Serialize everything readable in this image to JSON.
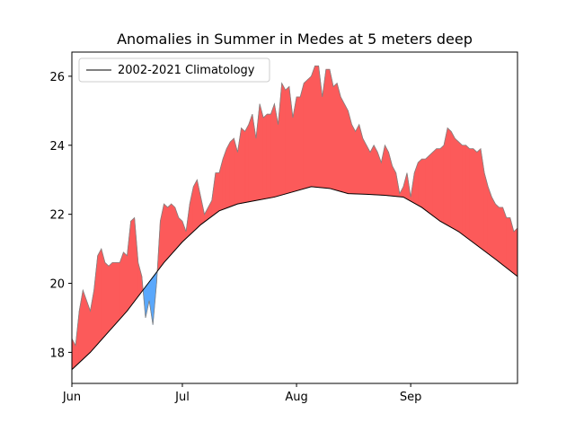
{
  "chart_data": {
    "type": "area",
    "title": "Anomalies in Summer in Medes at 5 meters deep",
    "xlabel": "",
    "ylabel": "",
    "x_ticks": [
      {
        "label": "Jun",
        "day": 0
      },
      {
        "label": "Jul",
        "day": 30
      },
      {
        "label": "Aug",
        "day": 61
      },
      {
        "label": "Sep",
        "day": 92
      }
    ],
    "y_ticks": [
      18,
      20,
      22,
      24,
      26
    ],
    "xlim": [
      0,
      121
    ],
    "ylim": [
      17.1,
      26.7
    ],
    "legend": {
      "position": "top-left",
      "entries": [
        "2002-2021 Climatology"
      ]
    },
    "grid": false,
    "colors": {
      "above": "#fc5a5a",
      "below": "#5aa8fc",
      "observed_line": "#808080",
      "climatology_line": "#000000"
    },
    "series": [
      {
        "name": "2002-2021 Climatology",
        "role": "climatology",
        "x": [
          0,
          5,
          10,
          15,
          20,
          25,
          30,
          35,
          40,
          45,
          50,
          55,
          60,
          65,
          70,
          75,
          80,
          85,
          90,
          95,
          100,
          105,
          110,
          115,
          121
        ],
        "values": [
          17.5,
          18.0,
          18.6,
          19.2,
          19.9,
          20.6,
          21.2,
          21.7,
          22.1,
          22.3,
          22.4,
          22.5,
          22.65,
          22.8,
          22.75,
          22.6,
          22.58,
          22.55,
          22.5,
          22.2,
          21.8,
          21.5,
          21.1,
          20.7,
          20.2
        ]
      },
      {
        "name": "",
        "role": "observed",
        "x": [
          0,
          1,
          2,
          3,
          4,
          5,
          6,
          7,
          8,
          9,
          10,
          11,
          12,
          13,
          14,
          15,
          16,
          17,
          18,
          19,
          20,
          21,
          22,
          23,
          24,
          25,
          26,
          27,
          28,
          29,
          30,
          31,
          32,
          33,
          34,
          35,
          36,
          37,
          38,
          39,
          40,
          41,
          42,
          43,
          44,
          45,
          46,
          47,
          48,
          49,
          50,
          51,
          52,
          53,
          54,
          55,
          56,
          57,
          58,
          59,
          60,
          61,
          62,
          63,
          64,
          65,
          66,
          67,
          68,
          69,
          70,
          71,
          72,
          73,
          74,
          75,
          76,
          77,
          78,
          79,
          80,
          81,
          82,
          83,
          84,
          85,
          86,
          87,
          88,
          89,
          90,
          91,
          92,
          93,
          94,
          95,
          96,
          97,
          98,
          99,
          100,
          101,
          102,
          103,
          104,
          105,
          106,
          107,
          108,
          109,
          110,
          111,
          112,
          113,
          114,
          115,
          116,
          117,
          118,
          119,
          120,
          121
        ],
        "values": [
          18.4,
          18.2,
          19.2,
          19.8,
          19.5,
          19.2,
          19.8,
          20.8,
          21.0,
          20.6,
          20.5,
          20.6,
          20.6,
          20.6,
          20.9,
          20.8,
          21.8,
          21.9,
          20.6,
          20.2,
          19.0,
          19.5,
          18.8,
          20.0,
          21.8,
          22.3,
          22.2,
          22.3,
          22.2,
          21.9,
          21.8,
          21.5,
          22.3,
          22.8,
          23.0,
          22.5,
          22.0,
          22.2,
          22.4,
          23.2,
          23.2,
          23.6,
          23.9,
          24.1,
          24.2,
          23.8,
          24.5,
          24.4,
          24.6,
          24.9,
          24.2,
          25.2,
          24.8,
          24.9,
          24.9,
          25.2,
          24.6,
          25.8,
          25.6,
          25.7,
          24.8,
          25.4,
          25.4,
          25.8,
          25.9,
          26.0,
          26.3,
          26.3,
          25.4,
          26.2,
          26.2,
          25.7,
          25.8,
          25.4,
          25.2,
          25.0,
          24.6,
          24.4,
          24.6,
          24.2,
          24.0,
          23.8,
          24.0,
          23.8,
          23.5,
          24.0,
          23.8,
          23.4,
          23.2,
          22.6,
          22.8,
          23.2,
          22.5,
          23.2,
          23.5,
          23.6,
          23.6,
          23.7,
          23.8,
          23.9,
          23.9,
          24.0,
          24.5,
          24.4,
          24.2,
          24.1,
          24.0,
          24.0,
          23.9,
          23.9,
          23.8,
          23.9,
          23.2,
          22.8,
          22.5,
          22.3,
          22.2,
          22.2,
          21.9,
          21.9,
          21.5,
          21.6
        ]
      }
    ]
  }
}
